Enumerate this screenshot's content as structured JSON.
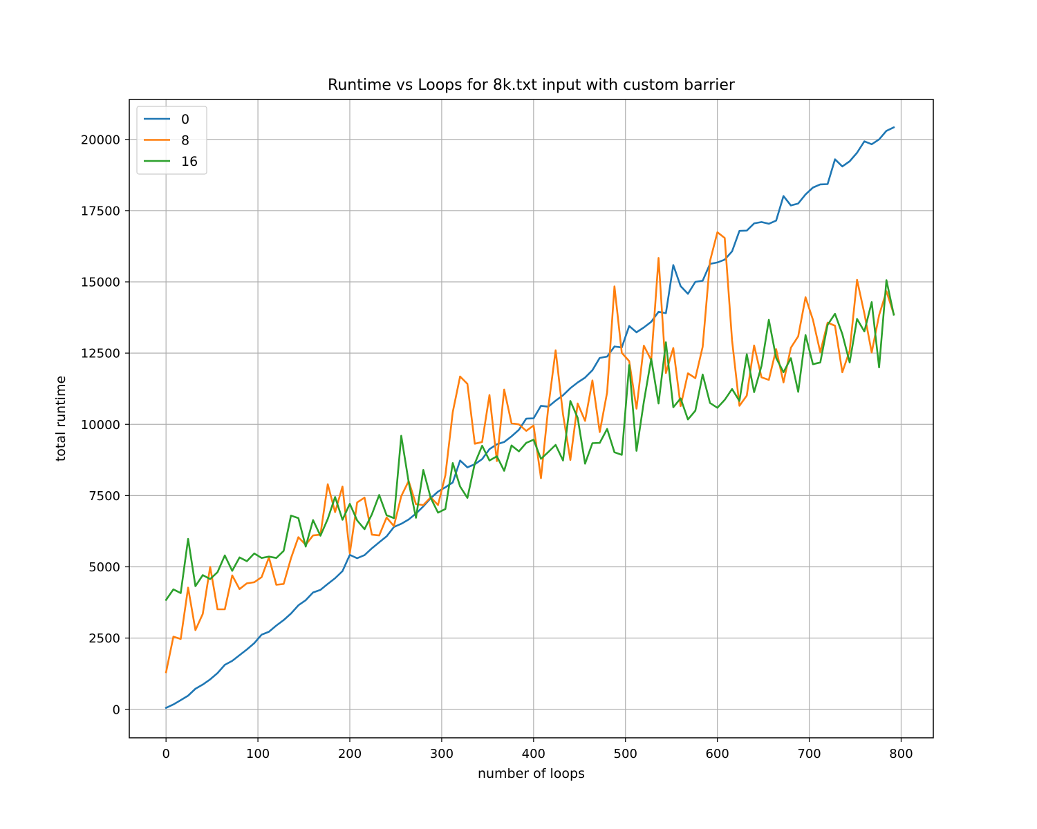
{
  "chart_data": {
    "type": "line",
    "title": "Runtime vs Loops for 8k.txt input with custom barrier",
    "xlabel": "number of loops",
    "ylabel": "total runtime",
    "xlim": [
      -40,
      835
    ],
    "ylim": [
      -1000,
      21400
    ],
    "xticks": [
      0,
      100,
      200,
      300,
      400,
      500,
      600,
      700,
      800
    ],
    "yticks": [
      0,
      2500,
      5000,
      7500,
      10000,
      12500,
      15000,
      17500,
      20000
    ],
    "grid": true,
    "legend_position": "top-left",
    "x": [
      0,
      8,
      16,
      24,
      32,
      40,
      48,
      56,
      64,
      72,
      80,
      88,
      96,
      104,
      112,
      120,
      128,
      136,
      144,
      152,
      160,
      168,
      176,
      184,
      192,
      200,
      208,
      216,
      224,
      232,
      240,
      248,
      256,
      264,
      272,
      280,
      288,
      296,
      304,
      312,
      320,
      328,
      336,
      344,
      352,
      360,
      368,
      376,
      384,
      392,
      400,
      408,
      416,
      424,
      432,
      440,
      448,
      456,
      464,
      472,
      480,
      488,
      496,
      504,
      512,
      520,
      528,
      536,
      544,
      552,
      560,
      568,
      576,
      584,
      592,
      600,
      608,
      616,
      624,
      632,
      640,
      648,
      656,
      664,
      672,
      680,
      688,
      696,
      704,
      712,
      720,
      728,
      736,
      744,
      752,
      760,
      768,
      776,
      784,
      792
    ],
    "series": [
      {
        "name": "0",
        "color": "#1f77b4",
        "values": [
          50,
          170,
          320,
          480,
          720,
          870,
          1050,
          1270,
          1560,
          1700,
          1900,
          2100,
          2320,
          2620,
          2720,
          2940,
          3130,
          3360,
          3650,
          3830,
          4100,
          4190,
          4400,
          4600,
          4850,
          5420,
          5300,
          5410,
          5650,
          5860,
          6070,
          6400,
          6510,
          6660,
          6870,
          7120,
          7410,
          7640,
          7790,
          7960,
          8730,
          8490,
          8600,
          8780,
          9130,
          9300,
          9380,
          9580,
          9810,
          10200,
          10210,
          10650,
          10620,
          10830,
          11020,
          11270,
          11470,
          11640,
          11900,
          12330,
          12380,
          12730,
          12700,
          13450,
          13230,
          13400,
          13600,
          13950,
          13900,
          15590,
          14850,
          14580,
          15000,
          15040,
          15630,
          15680,
          15780,
          16070,
          16790,
          16800,
          17050,
          17100,
          17040,
          17150,
          18010,
          17680,
          17750,
          18070,
          18310,
          18420,
          18430,
          19300,
          19050,
          19230,
          19530,
          19930,
          19830,
          20000,
          20300,
          20420
        ]
      },
      {
        "name": "8",
        "color": "#ff7f0e",
        "values": [
          1300,
          2550,
          2470,
          4270,
          2780,
          3350,
          5000,
          3510,
          3510,
          4700,
          4220,
          4420,
          4460,
          4640,
          5330,
          4370,
          4400,
          5300,
          6040,
          5770,
          6100,
          6130,
          7900,
          6920,
          7820,
          5470,
          7260,
          7430,
          6130,
          6100,
          6730,
          6430,
          7480,
          8010,
          7200,
          7170,
          7440,
          7170,
          8210,
          10430,
          11680,
          11420,
          9320,
          9380,
          11030,
          8710,
          11220,
          10040,
          10000,
          9770,
          9960,
          8110,
          10600,
          12600,
          10350,
          8750,
          10730,
          10120,
          11540,
          9730,
          11120,
          14840,
          12510,
          12220,
          10550,
          12760,
          12250,
          15840,
          11800,
          12680,
          10640,
          11790,
          11620,
          12720,
          15730,
          16740,
          16540,
          12950,
          10650,
          11010,
          12770,
          11650,
          11560,
          12640,
          11470,
          12690,
          13090,
          14460,
          13670,
          12530,
          13570,
          13460,
          11830,
          12580,
          15070,
          13890,
          12520,
          13830,
          14670,
          13870
        ]
      },
      {
        "name": "16",
        "color": "#2ca02c",
        "values": [
          3840,
          4210,
          4080,
          5980,
          4320,
          4710,
          4570,
          4810,
          5400,
          4860,
          5330,
          5200,
          5470,
          5310,
          5360,
          5310,
          5560,
          6800,
          6710,
          5710,
          6640,
          6090,
          6680,
          7450,
          6650,
          7210,
          6630,
          6320,
          6840,
          7520,
          6810,
          6710,
          9600,
          7980,
          6720,
          8400,
          7420,
          6900,
          7030,
          8640,
          7820,
          7420,
          8630,
          9250,
          8730,
          8880,
          8370,
          9260,
          9050,
          9350,
          9460,
          8790,
          9030,
          9280,
          8730,
          10820,
          10230,
          8620,
          9340,
          9350,
          9840,
          9020,
          8930,
          12080,
          9070,
          10790,
          12300,
          10730,
          12880,
          10600,
          10910,
          10170,
          10480,
          11750,
          10750,
          10580,
          10860,
          11240,
          10820,
          12460,
          11130,
          12050,
          13670,
          12330,
          11830,
          12320,
          11140,
          13130,
          12110,
          12170,
          13490,
          13880,
          13170,
          12170,
          13700,
          13260,
          14290,
          12000,
          15060,
          13850
        ]
      }
    ]
  }
}
